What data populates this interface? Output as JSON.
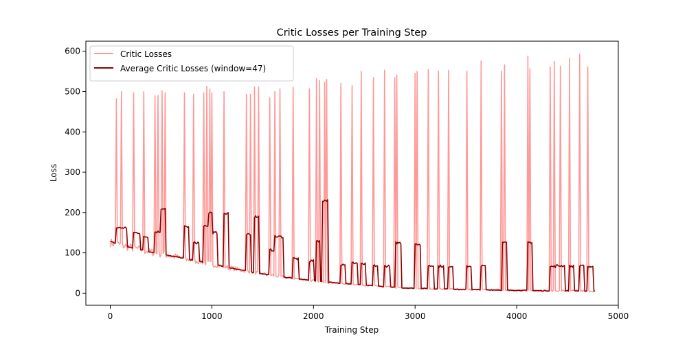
{
  "chart_data": {
    "type": "line",
    "title": "Critic Losses per Training Step",
    "xlabel": "Training Step",
    "ylabel": "Loss",
    "xlim": [
      -240,
      5000
    ],
    "ylim": [
      -30,
      625
    ],
    "x_ticks": [
      0,
      1000,
      2000,
      3000,
      4000,
      5000
    ],
    "x_tick_labels": [
      "0",
      "1000",
      "2000",
      "3000",
      "4000",
      "5000"
    ],
    "y_ticks": [
      0,
      100,
      200,
      300,
      400,
      500,
      600
    ],
    "y_tick_labels": [
      "0",
      "100",
      "200",
      "300",
      "400",
      "500",
      "600"
    ],
    "grid": false,
    "legend_position": "top-left",
    "series": [
      {
        "name": "Critic Losses",
        "color": "#ff9896",
        "baseline": [
          [
            0,
            125
          ],
          [
            100,
            120
          ],
          [
            200,
            113
          ],
          [
            300,
            108
          ],
          [
            400,
            102
          ],
          [
            500,
            97
          ],
          [
            600,
            92
          ],
          [
            700,
            88
          ],
          [
            800,
            82
          ],
          [
            900,
            78
          ],
          [
            1000,
            72
          ],
          [
            1100,
            67
          ],
          [
            1200,
            62
          ],
          [
            1300,
            57
          ],
          [
            1400,
            52
          ],
          [
            1500,
            48
          ],
          [
            1600,
            44
          ],
          [
            1700,
            40
          ],
          [
            1800,
            37
          ],
          [
            1900,
            34
          ],
          [
            2000,
            31
          ],
          [
            2100,
            28
          ],
          [
            2200,
            26
          ],
          [
            2300,
            24
          ],
          [
            2400,
            22
          ],
          [
            2500,
            20
          ],
          [
            2600,
            18
          ],
          [
            2700,
            16
          ],
          [
            2800,
            14
          ],
          [
            2900,
            13
          ],
          [
            3000,
            12
          ],
          [
            3200,
            11
          ],
          [
            3500,
            9
          ],
          [
            3800,
            8
          ],
          [
            4000,
            7
          ],
          [
            4300,
            6
          ],
          [
            4500,
            6
          ],
          [
            4770,
            5
          ]
        ],
        "spikes": [
          [
            60,
            482
          ],
          [
            105,
            500
          ],
          [
            230,
            497
          ],
          [
            330,
            500
          ],
          [
            440,
            490
          ],
          [
            470,
            490
          ],
          [
            510,
            502
          ],
          [
            540,
            497
          ],
          [
            730,
            497
          ],
          [
            820,
            493
          ],
          [
            920,
            497
          ],
          [
            950,
            513
          ],
          [
            975,
            506
          ],
          [
            1000,
            497
          ],
          [
            1120,
            500
          ],
          [
            1340,
            493
          ],
          [
            1375,
            493
          ],
          [
            1420,
            511
          ],
          [
            1455,
            511
          ],
          [
            1570,
            485
          ],
          [
            1620,
            500
          ],
          [
            1670,
            507
          ],
          [
            1800,
            511
          ],
          [
            1960,
            507
          ],
          [
            2030,
            532
          ],
          [
            2060,
            527
          ],
          [
            2110,
            523
          ],
          [
            2130,
            530
          ],
          [
            2270,
            520
          ],
          [
            2380,
            515
          ],
          [
            2470,
            550
          ],
          [
            2590,
            535
          ],
          [
            2700,
            553
          ],
          [
            2800,
            535
          ],
          [
            2820,
            541
          ],
          [
            3000,
            545
          ],
          [
            3020,
            550
          ],
          [
            3130,
            555
          ],
          [
            3230,
            551
          ],
          [
            3330,
            553
          ],
          [
            3510,
            551
          ],
          [
            3650,
            576
          ],
          [
            3850,
            550
          ],
          [
            3880,
            566
          ],
          [
            4110,
            588
          ],
          [
            4130,
            557
          ],
          [
            4330,
            561
          ],
          [
            4370,
            575
          ],
          [
            4430,
            563
          ],
          [
            4520,
            583
          ],
          [
            4620,
            593
          ],
          [
            4700,
            561
          ]
        ]
      },
      {
        "name": "Average Critic Losses (window=47)",
        "color": "#8b0000",
        "baseline": [
          [
            0,
            128
          ],
          [
            100,
            120
          ],
          [
            200,
            113
          ],
          [
            300,
            108
          ],
          [
            400,
            102
          ],
          [
            500,
            97
          ],
          [
            600,
            92
          ],
          [
            700,
            88
          ],
          [
            800,
            82
          ],
          [
            900,
            78
          ],
          [
            1000,
            72
          ],
          [
            1100,
            67
          ],
          [
            1200,
            62
          ],
          [
            1300,
            57
          ],
          [
            1400,
            52
          ],
          [
            1500,
            48
          ],
          [
            1600,
            44
          ],
          [
            1700,
            40
          ],
          [
            1800,
            37
          ],
          [
            1900,
            34
          ],
          [
            2000,
            31
          ],
          [
            2100,
            28
          ],
          [
            2200,
            26
          ],
          [
            2300,
            24
          ],
          [
            2400,
            22
          ],
          [
            2500,
            20
          ],
          [
            2600,
            18
          ],
          [
            2700,
            16
          ],
          [
            2800,
            14
          ],
          [
            2900,
            13
          ],
          [
            3000,
            12
          ],
          [
            3200,
            11
          ],
          [
            3500,
            9
          ],
          [
            3800,
            8
          ],
          [
            4000,
            7
          ],
          [
            4300,
            6
          ],
          [
            4500,
            6
          ],
          [
            4770,
            5
          ]
        ],
        "plateaus": [
          [
            60,
            160,
            162
          ],
          [
            230,
            290,
            150
          ],
          [
            330,
            370,
            140
          ],
          [
            440,
            490,
            152
          ],
          [
            490,
            540,
            210
          ],
          [
            730,
            770,
            165
          ],
          [
            820,
            870,
            125
          ],
          [
            920,
            960,
            165
          ],
          [
            960,
            1000,
            200
          ],
          [
            1000,
            1050,
            150
          ],
          [
            1120,
            1160,
            198
          ],
          [
            1340,
            1380,
            145
          ],
          [
            1420,
            1460,
            190
          ],
          [
            1570,
            1610,
            107
          ],
          [
            1620,
            1650,
            140
          ],
          [
            1660,
            1700,
            140
          ],
          [
            1800,
            1850,
            85
          ],
          [
            1960,
            2000,
            80
          ],
          [
            2030,
            2060,
            130
          ],
          [
            2090,
            2140,
            230
          ],
          [
            2270,
            2310,
            72
          ],
          [
            2380,
            2430,
            75
          ],
          [
            2470,
            2510,
            72
          ],
          [
            2590,
            2630,
            68
          ],
          [
            2700,
            2750,
            67
          ],
          [
            2810,
            2860,
            125
          ],
          [
            3000,
            3050,
            122
          ],
          [
            3130,
            3180,
            68
          ],
          [
            3230,
            3280,
            67
          ],
          [
            3330,
            3370,
            67
          ],
          [
            3510,
            3550,
            67
          ],
          [
            3650,
            3690,
            67
          ],
          [
            3860,
            3900,
            125
          ],
          [
            4110,
            4150,
            126
          ],
          [
            4330,
            4380,
            66
          ],
          [
            4380,
            4420,
            68
          ],
          [
            4430,
            4470,
            68
          ],
          [
            4520,
            4560,
            67
          ],
          [
            4620,
            4660,
            67
          ],
          [
            4700,
            4750,
            66
          ]
        ]
      }
    ]
  }
}
